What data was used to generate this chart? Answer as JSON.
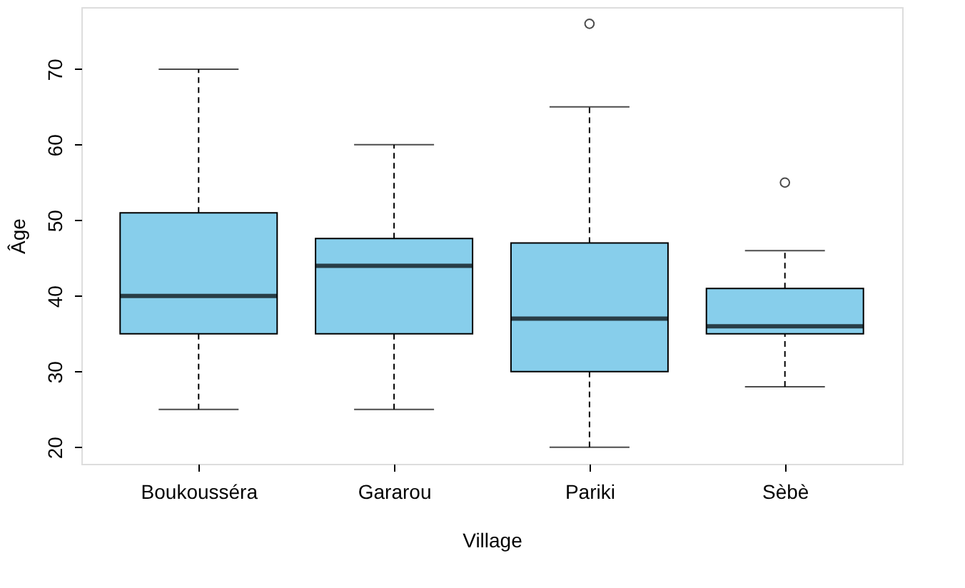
{
  "chart_data": {
    "type": "box",
    "xlabel": "Village",
    "ylabel": "Âge",
    "categories": [
      "Boukousséra",
      "Gararou",
      "Pariki",
      "Sèbè"
    ],
    "color": "#87ceeb",
    "boxes": [
      {
        "low": 25,
        "q1": 35,
        "median": 40,
        "q3": 51,
        "high": 70
      },
      {
        "low": 25,
        "q1": 35,
        "median": 44,
        "q3": 47.6,
        "high": 60
      },
      {
        "low": 20,
        "q1": 30,
        "median": 37,
        "q3": 47,
        "high": 65,
        "outliers": [
          76
        ]
      },
      {
        "low": 28,
        "q1": 35,
        "median": 36,
        "q3": 41,
        "high": 46,
        "outliers": [
          55
        ]
      }
    ],
    "ylim": [
      17.8,
      78.2
    ],
    "yticks": [
      20,
      30,
      40,
      50,
      60,
      70
    ]
  }
}
